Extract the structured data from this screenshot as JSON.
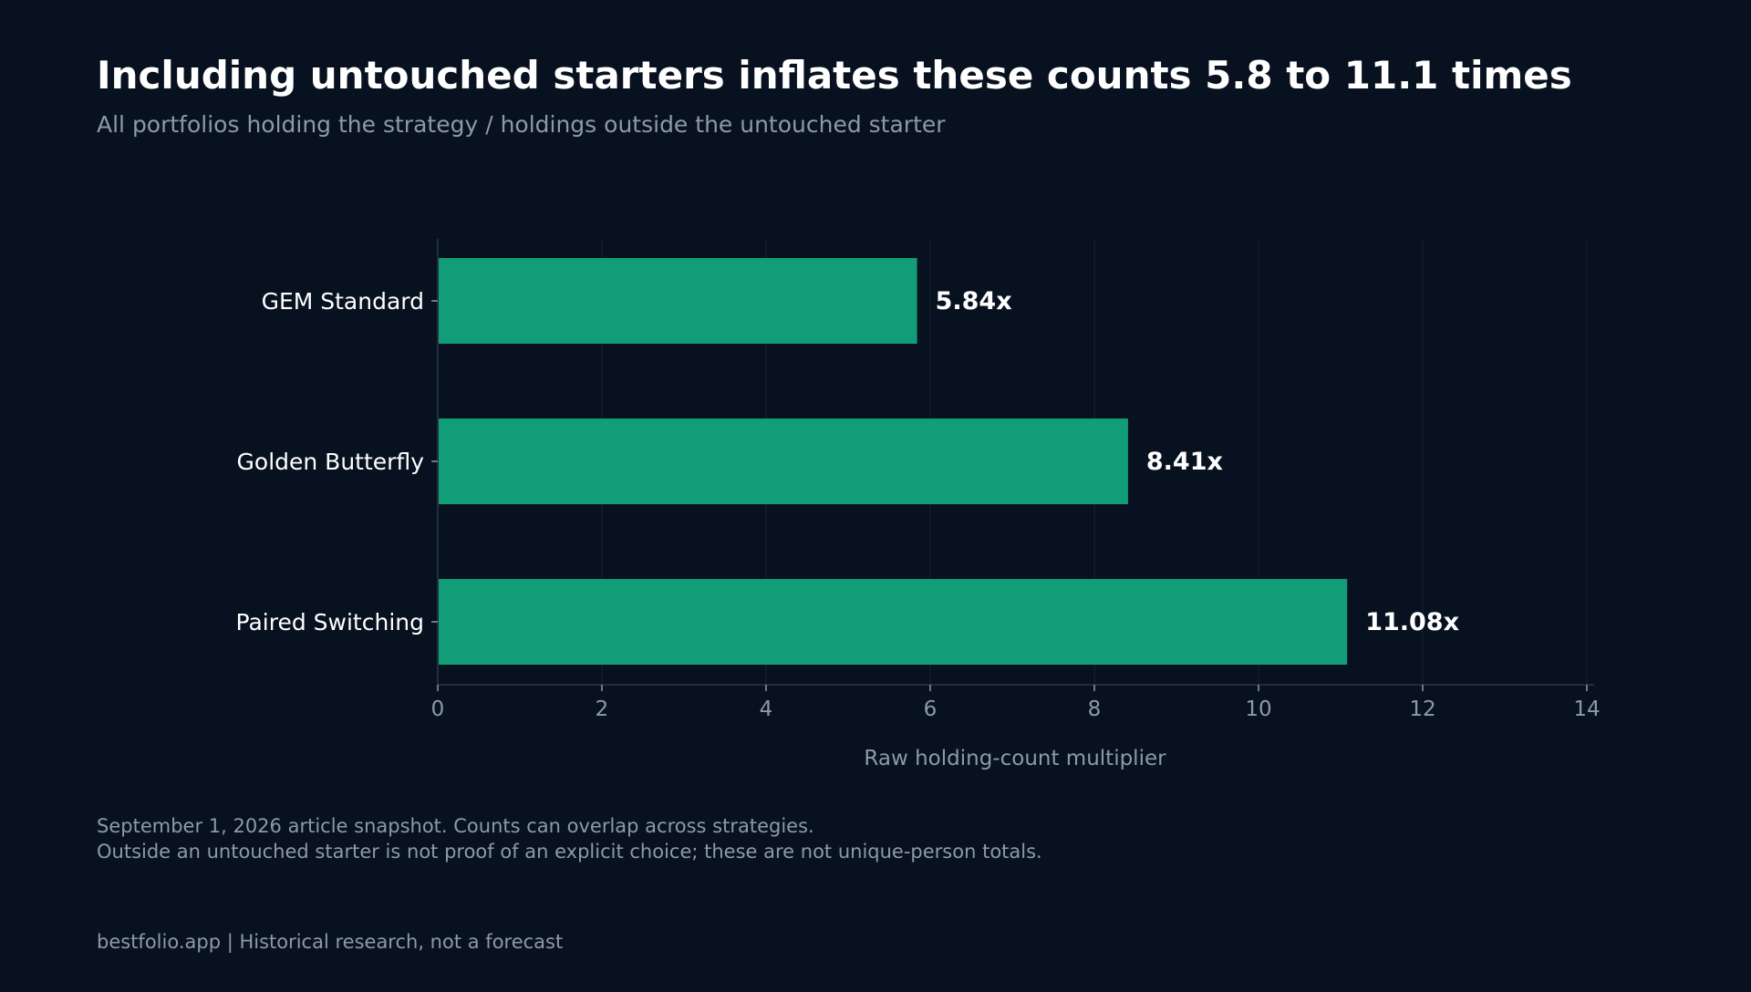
{
  "title": "Including untouched starters inflates these counts 5.8 to 11.1 times",
  "subtitle": "All portfolios holding the strategy / holdings outside the untouched starter",
  "notes": [
    "September 1, 2026 article snapshot. Counts can overlap across strategies.",
    "Outside an untouched starter is not proof of an explicit choice; these are not unique-person totals."
  ],
  "footer": "bestfolio.app  |  Historical research, not a forecast",
  "colors": {
    "background": "#08111f",
    "bar": "#109d77",
    "text": "#ffffff",
    "muted": "#8d99ab",
    "axis": "#2a3646",
    "grid": "#121c2a"
  },
  "chart_data": {
    "type": "bar",
    "orientation": "horizontal",
    "categories": [
      "GEM Standard",
      "Golden Butterfly",
      "Paired Switching"
    ],
    "values": [
      5.84,
      8.41,
      11.08
    ],
    "value_labels": [
      "5.84x",
      "8.41x",
      "11.08x"
    ],
    "xlabel": "Raw holding-count multiplier",
    "ylabel": "",
    "xlim": [
      0,
      14
    ],
    "xticks": [
      0,
      2,
      4,
      6,
      8,
      10,
      12,
      14
    ],
    "grid": true
  }
}
